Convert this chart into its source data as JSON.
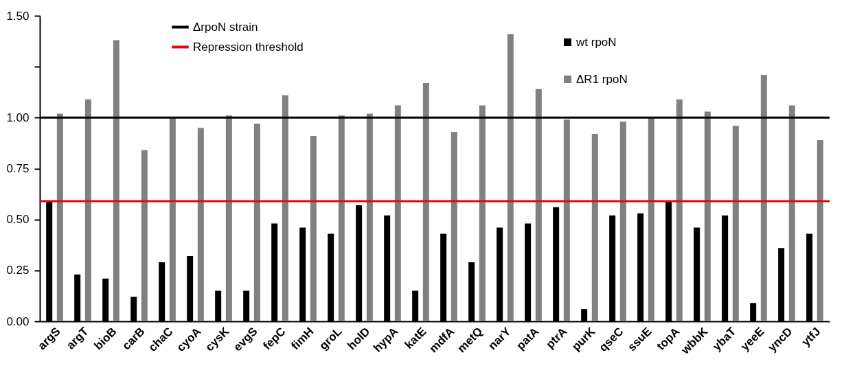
{
  "chart_data": {
    "type": "bar",
    "categories": [
      "argS",
      "argT",
      "bioB",
      "carB",
      "chaC",
      "cyoA",
      "cysK",
      "evgS",
      "fepC",
      "fimH",
      "groL",
      "holD",
      "hypA",
      "katE",
      "mdfA",
      "metQ",
      "narY",
      "patA",
      "ptrA",
      "purK",
      "qseC",
      "ssuE",
      "topA",
      "wbbK",
      "ybaT",
      "yeeE",
      "yncD",
      "ytfJ"
    ],
    "series": [
      {
        "name": "wt rpoN",
        "color": "#000000",
        "values": [
          0.59,
          0.23,
          0.21,
          0.12,
          0.29,
          0.32,
          0.15,
          0.15,
          0.48,
          0.46,
          0.43,
          0.57,
          0.52,
          0.15,
          0.43,
          0.29,
          0.46,
          0.48,
          0.56,
          0.06,
          0.52,
          0.53,
          0.59,
          0.46,
          0.52,
          0.09,
          0.36,
          0.43
        ]
      },
      {
        "name": "ΔR1 rpoN",
        "color": "#808080",
        "values": [
          1.02,
          1.09,
          1.38,
          0.84,
          1.0,
          0.95,
          1.01,
          0.97,
          1.11,
          0.91,
          1.01,
          1.02,
          1.06,
          1.17,
          0.93,
          1.06,
          1.41,
          1.14,
          0.99,
          0.92,
          0.98,
          1.0,
          1.09,
          1.03,
          0.96,
          1.21,
          1.06,
          0.89
        ]
      }
    ],
    "ylim": [
      0,
      1.5
    ],
    "yticks": [
      {
        "value": 0,
        "label": "0.00"
      },
      {
        "value": 0.25,
        "label": "0.25"
      },
      {
        "value": 0.5,
        "label": "0.50"
      },
      {
        "value": 0.75,
        "label": "0.75"
      },
      {
        "value": 1,
        "label": "1.00"
      },
      {
        "value": 1.25,
        "label": null
      },
      {
        "value": 1.5,
        "label": "1.50"
      }
    ],
    "ref_lines": [
      {
        "axis": "y",
        "value": 1.0,
        "label": "ΔrpoN strain",
        "color": "#000000"
      },
      {
        "axis": "y",
        "value": 0.59,
        "label": "Repression threshold",
        "color": "#e30613"
      }
    ],
    "grid": false,
    "legend": "top right"
  }
}
